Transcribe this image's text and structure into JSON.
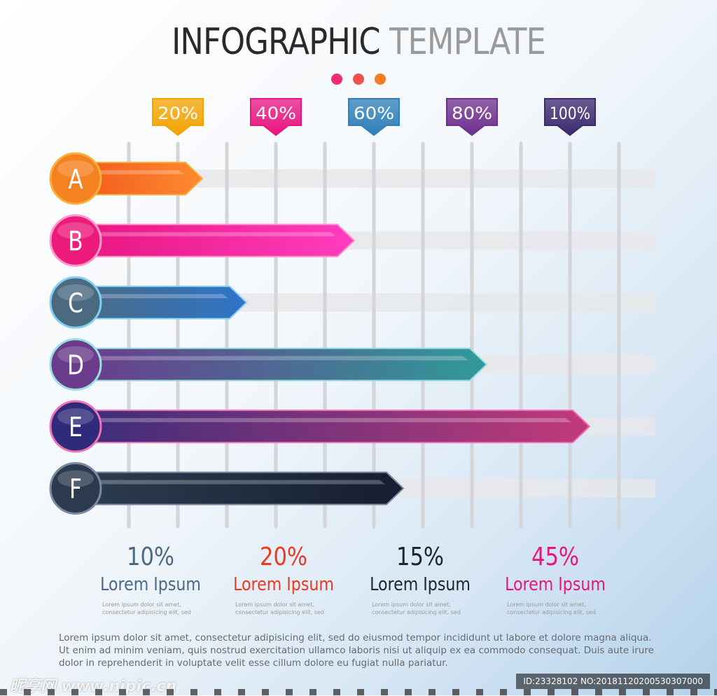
{
  "title": {
    "main": "INFOGRAPHIC",
    "accent": "TEMPLATE"
  },
  "dot_colors": [
    "#ee2d7a",
    "#f0514d",
    "#f47b21"
  ],
  "chart_data": {
    "type": "bar",
    "orientation": "horizontal",
    "categories": [
      "A",
      "B",
      "C",
      "D",
      "E",
      "F"
    ],
    "values": [
      25,
      56,
      34,
      83,
      104,
      66
    ],
    "xlim": [
      0,
      110
    ],
    "ticks": [
      {
        "value": 20,
        "label": "20%",
        "color": "#f4a300"
      },
      {
        "value": 40,
        "label": "40%",
        "color": "#e8157f"
      },
      {
        "value": 60,
        "label": "60%",
        "color": "#2f7fb8"
      },
      {
        "value": 80,
        "label": "80%",
        "color": "#6f2f8e"
      },
      {
        "value": 100,
        "label": "100%",
        "color": "#3b2a6e"
      }
    ],
    "grid": true,
    "bar_colors": [
      {
        "start": "#f05a1c",
        "end": "#ff8a30",
        "circle": "#f58220",
        "rim": "#fbb03b"
      },
      {
        "start": "#e8157f",
        "end": "#ff3dc0",
        "circle": "#ec1b7b",
        "rim": "#f9c"
      },
      {
        "start": "#4a6b82",
        "end": "#2f74c9",
        "circle": "#4b6a80",
        "rim": "#7fd0f5"
      },
      {
        "start": "#6b3b8c",
        "end": "#2f9a9a",
        "circle": "#6b3b8c",
        "rim": "#9adfe0"
      },
      {
        "start": "#3b2d7a",
        "end": "#c23a7a",
        "circle": "#302a7a",
        "rim": "#f073b9"
      },
      {
        "start": "#2c3e50",
        "end": "#161d30",
        "circle": "#2c3a4f",
        "rim": "#7a8aa0"
      }
    ]
  },
  "stats": [
    {
      "value": "10%",
      "label": "Lorem Ipsum",
      "color": "#4a6a85",
      "desc1": "Lorem ipsum dolor sit amet,",
      "desc2": "consectetur adipisicing elit, sed"
    },
    {
      "value": "20%",
      "label": "Lorem Ipsum",
      "color": "#ea3a1f",
      "desc1": "Lorem ipsum dolor sit amet,",
      "desc2": "consectetur adipisicing elit, sed"
    },
    {
      "value": "15%",
      "label": "Lorem Ipsum",
      "color": "#1d2535",
      "desc1": "Lorem ipsum dolor sit amet,",
      "desc2": "consectetur adipisicing elit, sed"
    },
    {
      "value": "45%",
      "label": "Lorem Ipsum",
      "color": "#e8157f",
      "desc1": "Lorem ipsum dolor sit amet,",
      "desc2": "consectetur adipisicing elit, sed"
    }
  ],
  "paragraph": "Lorem ipsum dolor sit amet, consectetur adipisicing elit, sed do eiusmod tempor incididunt ut labore et dolore magna aliqua. Ut enim ad minim veniam, quis nostrud exercitation ullamco laboris nisi ut aliquip ex ea commodo consequat.  Duis aute irure dolor in reprehenderit in voluptate velit esse cillum dolore eu fugiat nulla pariatur.",
  "watermark": {
    "left": "昵享网 www.nipic.cn",
    "right": "ID:23328102 NO:20181120200530307000"
  }
}
